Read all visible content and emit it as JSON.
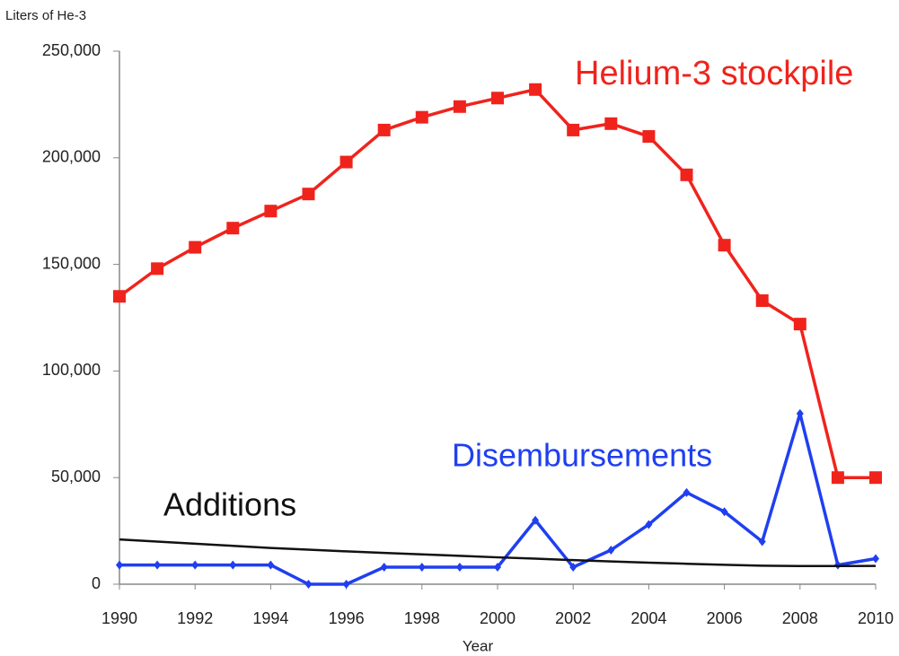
{
  "chart_data": {
    "type": "line",
    "y_axis_label": "Liters of He-3",
    "x_axis_label": "Year",
    "x": [
      1990,
      1991,
      1992,
      1993,
      1994,
      1995,
      1996,
      1997,
      1998,
      1999,
      2000,
      2001,
      2002,
      2003,
      2004,
      2005,
      2006,
      2007,
      2008,
      2009,
      2010
    ],
    "series": [
      {
        "name": "Helium-3 stockpile",
        "color": "#f0231c",
        "marker": "square",
        "values": [
          135000,
          148000,
          158000,
          167000,
          175000,
          183000,
          198000,
          213000,
          219000,
          224000,
          228000,
          232000,
          213000,
          216000,
          210000,
          192000,
          159000,
          133000,
          122000,
          50000,
          50000
        ]
      },
      {
        "name": "Disembursements",
        "color": "#1f3ff0",
        "marker": "diamond",
        "values": [
          9000,
          9000,
          9000,
          9000,
          9000,
          0,
          0,
          8000,
          8000,
          8000,
          8000,
          30000,
          8000,
          16000,
          28000,
          43000,
          34000,
          20000,
          80000,
          9000,
          12000
        ]
      },
      {
        "name": "Additions",
        "color": "#111111",
        "marker": "none",
        "values": [
          21000,
          20000,
          19000,
          18000,
          17000,
          16200,
          15400,
          14700,
          14000,
          13300,
          12600,
          12000,
          11300,
          10700,
          10100,
          9600,
          9100,
          8700,
          8500,
          8500,
          8600
        ]
      }
    ],
    "xlim": [
      1990,
      2010
    ],
    "xticks": [
      1990,
      1992,
      1994,
      1996,
      1998,
      2000,
      2002,
      2004,
      2006,
      2008,
      2010
    ],
    "ylim": [
      0,
      250000
    ],
    "yticks": [
      0,
      {
        "value": 50000,
        "label": "50,000"
      },
      {
        "value": 100000,
        "label": "100,000"
      },
      {
        "value": 150000,
        "label": "150,000"
      },
      {
        "value": 200000,
        "label": "200,000"
      },
      {
        "value": 250000,
        "label": "250,000"
      }
    ],
    "grid": false
  }
}
